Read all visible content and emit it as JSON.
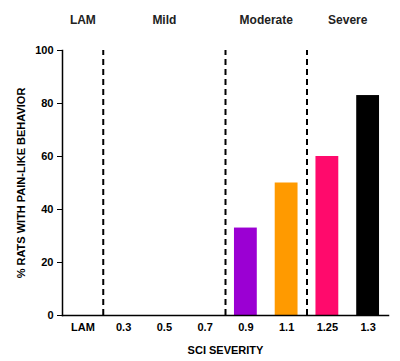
{
  "chart_data": {
    "type": "bar",
    "x_label": "SCI SEVERITY",
    "y_label": "% RATS WITH PAIN-LIKE BEHAVIOR",
    "categories": [
      "LAM",
      "0.3",
      "0.5",
      "0.7",
      "0.9",
      "1.1",
      "1.25",
      "1.3"
    ],
    "values": [
      0,
      0,
      0,
      0,
      33,
      50,
      60,
      83
    ],
    "colors": [
      "#000000",
      "#000000",
      "#000000",
      "#000000",
      "#9b00d3",
      "#ff9a00",
      "#ff0a6c",
      "#000000"
    ],
    "ylim": [
      0,
      100
    ],
    "yticks": [
      0,
      20,
      40,
      60,
      80,
      100
    ],
    "grid": false,
    "annotations": [
      {
        "text": "LAM",
        "categories": [
          "LAM",
          "LAM"
        ]
      },
      {
        "text": "Mild",
        "categories": [
          "0.3",
          "0.7"
        ]
      },
      {
        "text": "Moderate",
        "categories": [
          "0.9",
          "1.1"
        ]
      },
      {
        "text": "Severe",
        "categories": [
          "1.25",
          "1.3"
        ]
      }
    ]
  }
}
